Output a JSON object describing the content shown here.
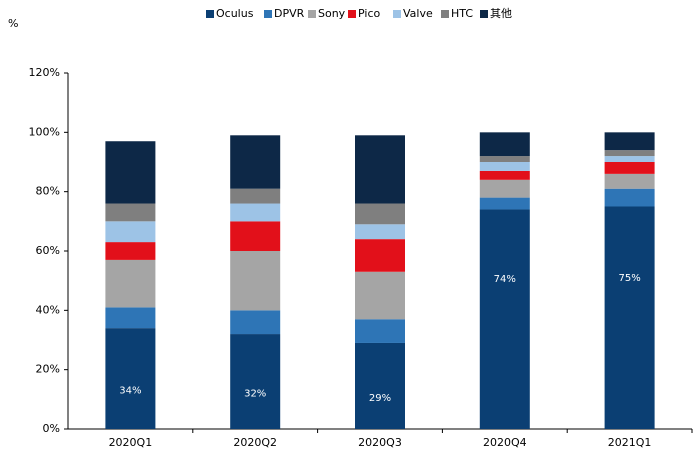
{
  "chart_data": {
    "type": "stacked_bar",
    "ylabel": "%",
    "categories": [
      "2020Q1",
      "2020Q2",
      "2020Q3",
      "2020Q4",
      "2021Q1"
    ],
    "series": [
      {
        "name": "Oculus",
        "color": "#0b3f73",
        "values": [
          34,
          32,
          29,
          74,
          75
        ],
        "value_labels": [
          "34%",
          "32%",
          "29%",
          "74%",
          "75%"
        ]
      },
      {
        "name": "DPVR",
        "color": "#2e75b6",
        "values": [
          7,
          8,
          8,
          4,
          6
        ]
      },
      {
        "name": "Sony",
        "color": "#a5a5a5",
        "values": [
          16,
          20,
          16,
          6,
          5
        ]
      },
      {
        "name": "Pico",
        "color": "#e2101a",
        "values": [
          6,
          10,
          11,
          3,
          4
        ]
      },
      {
        "name": "Valve",
        "color": "#9dc3e6",
        "values": [
          7,
          6,
          5,
          3,
          2
        ]
      },
      {
        "name": "HTC",
        "color": "#7f7f7f",
        "values": [
          6,
          5,
          7,
          2,
          2
        ]
      },
      {
        "name": "其他",
        "color": "#0d2847",
        "values": [
          21,
          18,
          23,
          8,
          6
        ]
      }
    ],
    "ylim": [
      0,
      120
    ],
    "yticks": [
      {
        "value": 0,
        "label": "0%"
      },
      {
        "value": 20,
        "label": "20%"
      },
      {
        "value": 40,
        "label": "40%"
      },
      {
        "value": 60,
        "label": "60%"
      },
      {
        "value": 80,
        "label": "80%"
      },
      {
        "value": 100,
        "label": "100%"
      },
      {
        "value": 120,
        "label": "120%"
      }
    ],
    "legend": "top"
  }
}
